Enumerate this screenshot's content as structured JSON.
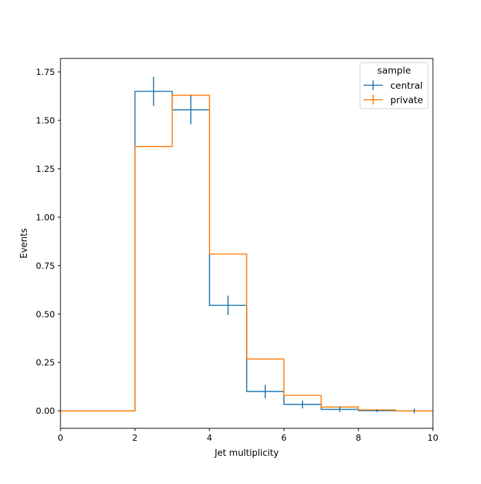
{
  "chart_data": {
    "type": "histogram-step",
    "title": "",
    "xlabel": "Jet multiplicity",
    "ylabel": "Events",
    "xlim": [
      0,
      10
    ],
    "ylim": [
      -0.09,
      1.82
    ],
    "bin_edges": [
      0,
      1,
      2,
      3,
      4,
      5,
      6,
      7,
      8,
      9,
      10
    ],
    "x_ticks": [
      0,
      2,
      4,
      6,
      8,
      10
    ],
    "x_tick_labels": [
      "0",
      "2",
      "4",
      "6",
      "8",
      "10"
    ],
    "y_ticks": [
      0.0,
      0.25,
      0.5,
      0.75,
      1.0,
      1.25,
      1.5,
      1.75
    ],
    "y_tick_labels": [
      "0.00",
      "0.25",
      "0.50",
      "0.75",
      "1.00",
      "1.25",
      "1.50",
      "1.75"
    ],
    "grid": false,
    "legend": {
      "title": "sample",
      "placement": "top-right"
    },
    "series": [
      {
        "name": "central",
        "color": "#1f77b4",
        "values": [
          0,
          0,
          1.65,
          1.555,
          0.545,
          0.1,
          0.033,
          0.008,
          0.001,
          0.0
        ],
        "errors": [
          0,
          0,
          0.075,
          0.075,
          0.05,
          0.035,
          0.02,
          0.015,
          0.008,
          0.012
        ]
      },
      {
        "name": "private",
        "color": "#ff7f0e",
        "values": [
          0,
          0,
          1.365,
          1.63,
          0.81,
          0.268,
          0.08,
          0.02,
          0.005,
          0.0
        ],
        "errors": [
          0,
          0,
          0,
          0,
          0,
          0,
          0,
          0,
          0,
          0
        ]
      }
    ]
  }
}
